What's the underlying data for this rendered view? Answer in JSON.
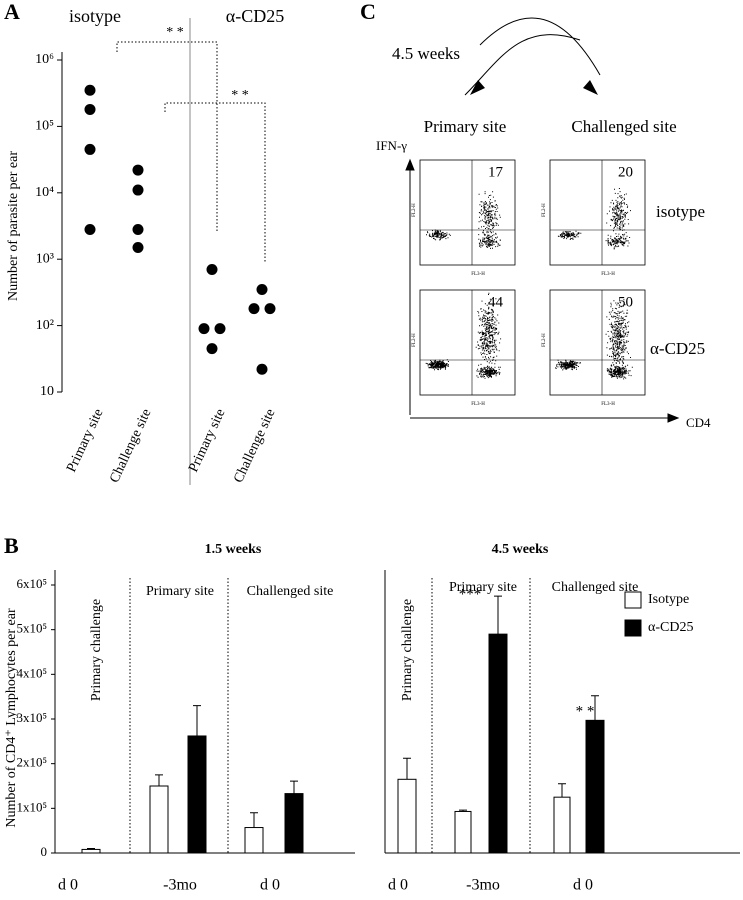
{
  "panels": [
    "A",
    "B",
    "C"
  ],
  "chart_data": [
    {
      "type": "scatter",
      "log_y": true,
      "ylabel": "Number of parasite per ear",
      "group_labels": [
        "isotype",
        "α-CD25"
      ],
      "categories": [
        "Primary site",
        "Challenge site",
        "Primary site",
        "Challenge site"
      ],
      "values": [
        [
          350000,
          180000,
          45000,
          2800
        ],
        [
          22000,
          11000,
          2800,
          1500
        ],
        [
          700,
          90,
          90,
          45
        ],
        [
          350,
          180,
          180,
          22
        ]
      ],
      "color": "#000000",
      "ylim": [
        10,
        1000000
      ],
      "yticks": [
        10,
        {
          "value": 100,
          "label": "10²"
        },
        {
          "value": 1000,
          "label": "10³"
        },
        {
          "value": 10000,
          "label": "10⁴"
        },
        {
          "value": 100000,
          "label": "10⁵"
        },
        {
          "value": 1000000,
          "label": "10⁶"
        }
      ],
      "annotations": [
        "* *",
        "* *"
      ]
    },
    {
      "type": "bar",
      "title": "1.5 weeks",
      "ylabel": "Number of CD4⁺ Lymphocytes per ear",
      "sections": [
        "Primary challenge",
        "Primary site",
        "Challenged site"
      ],
      "categories": [
        "d 0",
        "-3mo",
        "d 0"
      ],
      "ylim": [
        0,
        600000
      ],
      "yticks": [
        0,
        {
          "value": 100000,
          "label": "1x10⁵"
        },
        {
          "value": 200000,
          "label": "2x10⁵"
        },
        {
          "value": 300000,
          "label": "3x10⁵"
        },
        {
          "value": 400000,
          "label": "4x10⁵"
        },
        {
          "value": 500000,
          "label": "5x10⁵"
        },
        {
          "value": 600000,
          "label": "6x10⁵"
        }
      ],
      "series": [
        {
          "color": "#ffffff",
          "values": [
            8000,
            150000,
            57000
          ],
          "errors": [
            2000,
            25000,
            33000
          ]
        },
        {
          "color": "#000000",
          "values": [
            null,
            262000,
            133000
          ],
          "errors": [
            null,
            68000,
            28000
          ]
        }
      ]
    },
    {
      "type": "bar",
      "title": "4.5 weeks",
      "sections": [
        "Primary challenge",
        "Primary site",
        "Challenged site"
      ],
      "categories": [
        "d 0",
        "-3mo",
        "d 0"
      ],
      "ylim": [
        0,
        600000
      ],
      "legend": "top-right",
      "series": [
        {
          "name": "Isotype",
          "color": "#ffffff",
          "values": [
            165000,
            93000,
            125000
          ],
          "errors": [
            47000,
            3000,
            30000
          ]
        },
        {
          "name": "α-CD25",
          "color": "#000000",
          "values": [
            null,
            490000,
            297000
          ],
          "errors": [
            null,
            85000,
            55000
          ]
        }
      ],
      "annotations": [
        "***",
        "* *"
      ]
    }
  ],
  "panel_c": {
    "time": "4.5 weeks",
    "columns": [
      "Primary site",
      "Challenged site"
    ],
    "rows": [
      "isotype",
      "α-CD25"
    ],
    "y_axis": "IFN-γ",
    "x_axis": "CD4",
    "plot_y": "FL2-H",
    "plot_x": "FL3-H",
    "percent": [
      [
        17,
        20
      ],
      [
        44,
        50
      ]
    ]
  }
}
